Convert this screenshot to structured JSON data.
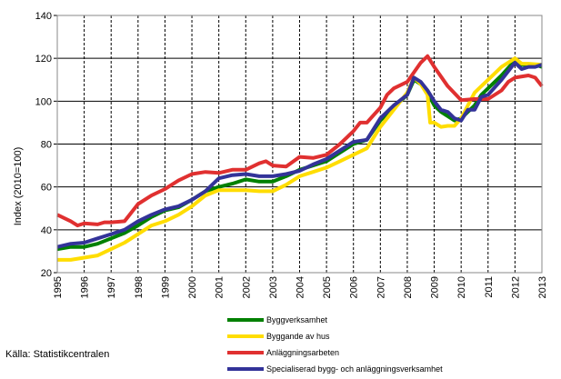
{
  "chart_data": {
    "type": "line",
    "title": "",
    "xlabel": "",
    "ylabel": "Index (2010=100)",
    "xlim": [
      1995,
      2013
    ],
    "ylim": [
      20,
      140
    ],
    "yticks": [
      20,
      40,
      60,
      80,
      100,
      120,
      140
    ],
    "xticks": [
      "1995",
      "1996",
      "1997",
      "1998",
      "1999",
      "2000",
      "2001",
      "2002",
      "2003",
      "2004",
      "2005",
      "2006",
      "2007",
      "2008",
      "2009",
      "2010",
      "2011",
      "2012",
      "2013"
    ],
    "grid": {
      "horizontal": "solid",
      "vertical": "dashed"
    },
    "legend_placement": "bottom",
    "source": "Källa: Statistikcentralen",
    "series": [
      {
        "name": "Byggverksamhet",
        "color": "#008000",
        "x": [
          1995,
          1995.5,
          1996,
          1996.5,
          1997,
          1997.5,
          1998,
          1998.5,
          1999,
          1999.5,
          2000,
          2000.5,
          2001,
          2001.5,
          2002,
          2002.5,
          2003,
          2003.5,
          2004,
          2004.5,
          2005,
          2005.5,
          2006,
          2006.5,
          2007,
          2007.5,
          2008,
          2008.25,
          2008.5,
          2008.75,
          2009,
          2009.25,
          2009.5,
          2009.75,
          2010,
          2010.25,
          2010.5,
          2010.75,
          2011,
          2011.5,
          2012,
          2012.25,
          2012.5,
          2012.75,
          2013
        ],
        "y": [
          31,
          32,
          32,
          33.5,
          36,
          38.5,
          42,
          46,
          49,
          50.5,
          54,
          58,
          60,
          61.5,
          63.5,
          62.5,
          62.5,
          65,
          68,
          70,
          72,
          76,
          80,
          82,
          91,
          97,
          103,
          110,
          108,
          104,
          98,
          95,
          93,
          91,
          92,
          95,
          98,
          103,
          106,
          112,
          119,
          117,
          117,
          117,
          116
        ]
      },
      {
        "name": "Byggande av hus",
        "color": "#ffdd00",
        "x": [
          1995,
          1995.5,
          1996,
          1996.5,
          1997,
          1997.5,
          1998,
          1998.5,
          1999,
          1999.5,
          2000,
          2000.5,
          2001,
          2001.5,
          2002,
          2002.5,
          2003,
          2003.5,
          2004,
          2004.5,
          2005,
          2005.5,
          2006,
          2006.5,
          2007,
          2007.5,
          2008,
          2008.25,
          2008.5,
          2008.75,
          2008.85,
          2009,
          2009.25,
          2009.5,
          2009.75,
          2010,
          2010.25,
          2010.5,
          2010.75,
          2011,
          2011.5,
          2012,
          2012.25,
          2012.5,
          2013
        ],
        "y": [
          26,
          26,
          27,
          28,
          31,
          34,
          38,
          42,
          44,
          47,
          51,
          56,
          58.5,
          58.5,
          58.5,
          58,
          58,
          61,
          65,
          67,
          69,
          72,
          75,
          78,
          88,
          96,
          104,
          111,
          108,
          103,
          90,
          90,
          88,
          88.5,
          88.5,
          92,
          98,
          104,
          107,
          110,
          116,
          120,
          117.5,
          117.5,
          117
        ]
      },
      {
        "name": "Anläggningsarbeten",
        "color": "#e03030",
        "x": [
          1995,
          1995.5,
          1995.75,
          1996,
          1996.5,
          1996.75,
          1997,
          1997.5,
          1998,
          1998.5,
          1999,
          1999.5,
          2000,
          2000.5,
          2001,
          2001.5,
          2002,
          2002.5,
          2002.75,
          2003,
          2003.5,
          2004,
          2004.5,
          2005,
          2005.5,
          2006,
          2006.25,
          2006.5,
          2007,
          2007.25,
          2007.5,
          2008,
          2008.5,
          2008.75,
          2009,
          2009.5,
          2010,
          2010.5,
          2011,
          2011.5,
          2011.75,
          2012,
          2012.5,
          2012.75,
          2013
        ],
        "y": [
          47,
          44,
          42,
          43,
          42.5,
          43.5,
          43.5,
          44,
          52,
          56,
          59,
          63,
          66,
          67,
          66.5,
          68,
          68,
          71,
          72,
          70,
          69.5,
          74,
          73.5,
          75,
          80,
          86,
          90,
          90,
          97,
          103,
          106,
          109,
          118,
          121,
          116,
          107,
          100.5,
          101,
          101,
          105,
          109,
          111,
          112,
          111,
          107
        ]
      },
      {
        "name": "Specialiserad bygg- och anläggningsverksamhet",
        "color": "#333399",
        "x": [
          1995,
          1995.5,
          1996,
          1996.5,
          1997,
          1997.5,
          1998,
          1998.5,
          1999,
          1999.5,
          2000,
          2000.5,
          2001,
          2001.5,
          2002,
          2002.5,
          2003,
          2003.5,
          2004,
          2004.5,
          2005,
          2005.5,
          2006,
          2006.5,
          2007,
          2007.5,
          2008,
          2008.25,
          2008.5,
          2008.75,
          2009,
          2009.25,
          2009.5,
          2009.75,
          2010,
          2010.25,
          2010.5,
          2010.75,
          2011,
          2011.5,
          2012,
          2012.25,
          2012.5,
          2012.75,
          2013
        ],
        "y": [
          32,
          33.5,
          34,
          36,
          38,
          40,
          44,
          47,
          49.5,
          51,
          54,
          58,
          64,
          65.5,
          66,
          65,
          65,
          66,
          67.5,
          70.5,
          73,
          77,
          81,
          82,
          92,
          98,
          103,
          111,
          109,
          105,
          100,
          96,
          95,
          92,
          91,
          96,
          96,
          102,
          103,
          110,
          118,
          115,
          116,
          116,
          117
        ]
      }
    ]
  }
}
